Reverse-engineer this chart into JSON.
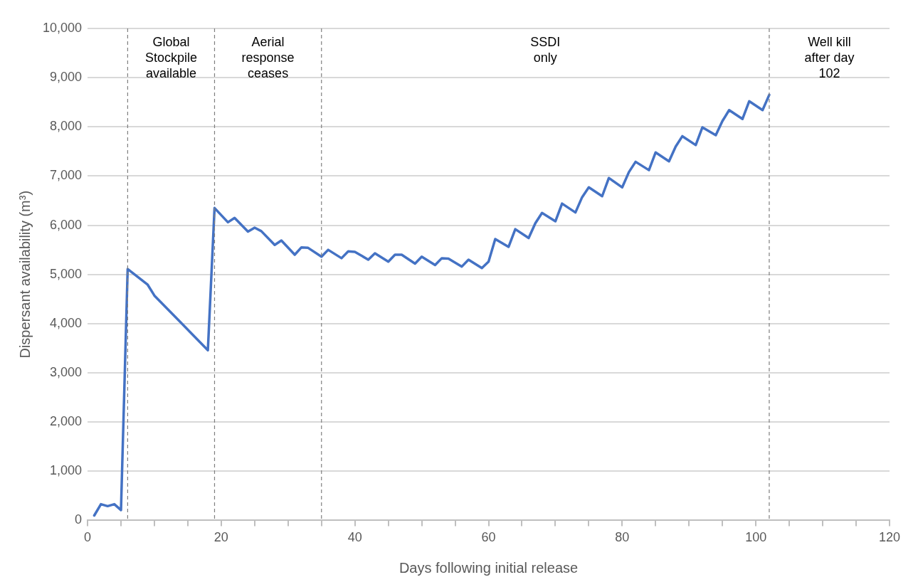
{
  "chart_data": {
    "type": "line",
    "xlabel": "Days following initial release",
    "ylabel": "Dispersant availability (m³)",
    "x": [
      1,
      2,
      3,
      4,
      5,
      6,
      9,
      10,
      18,
      19,
      21,
      22,
      24,
      25,
      26,
      28,
      29,
      31,
      32,
      33,
      35,
      36,
      38,
      39,
      40,
      42,
      43,
      45,
      46,
      47,
      49,
      50,
      52,
      53,
      54,
      56,
      57,
      59,
      60,
      61,
      63,
      64,
      66,
      67,
      68,
      70,
      71,
      73,
      74,
      75,
      77,
      78,
      80,
      81,
      82,
      84,
      85,
      87,
      88,
      89,
      91,
      92,
      94,
      95,
      96,
      98,
      99,
      101,
      102
    ],
    "series": [
      {
        "color": "#4472c4",
        "values": [
          100,
          330,
          290,
          330,
          210,
          5110,
          4790,
          4570,
          3460,
          6350,
          6060,
          6150,
          5870,
          5950,
          5880,
          5600,
          5690,
          5400,
          5550,
          5540,
          5360,
          5500,
          5330,
          5470,
          5460,
          5300,
          5430,
          5260,
          5400,
          5400,
          5220,
          5360,
          5190,
          5330,
          5320,
          5160,
          5300,
          5130,
          5260,
          5720,
          5560,
          5920,
          5740,
          6040,
          6250,
          6080,
          6440,
          6260,
          6570,
          6770,
          6590,
          6960,
          6770,
          7080,
          7290,
          7120,
          7480,
          7300,
          7600,
          7810,
          7630,
          7990,
          7830,
          8120,
          8340,
          8160,
          8520,
          8340,
          8650
        ]
      }
    ],
    "xlim": [
      0,
      120
    ],
    "xticks": [
      0,
      {
        "value": 5,
        "label": null
      },
      {
        "value": 10,
        "label": null
      },
      {
        "value": 15,
        "label": null
      },
      20,
      {
        "value": 25,
        "label": null
      },
      {
        "value": 30,
        "label": null
      },
      {
        "value": 35,
        "label": null
      },
      40,
      {
        "value": 45,
        "label": null
      },
      {
        "value": 50,
        "label": null
      },
      {
        "value": 55,
        "label": null
      },
      60,
      {
        "value": 65,
        "label": null
      },
      {
        "value": 70,
        "label": null
      },
      {
        "value": 75,
        "label": null
      },
      80,
      {
        "value": 85,
        "label": null
      },
      {
        "value": 90,
        "label": null
      },
      {
        "value": 95,
        "label": null
      },
      100,
      {
        "value": 105,
        "label": null
      },
      {
        "value": 110,
        "label": null
      },
      {
        "value": 115,
        "label": null
      },
      120
    ],
    "ylim": [
      0,
      10000
    ],
    "yticks": [
      0,
      {
        "value": 1000,
        "label": "1,000"
      },
      {
        "value": 2000,
        "label": "2,000"
      },
      {
        "value": 3000,
        "label": "3,000"
      },
      {
        "value": 4000,
        "label": "4,000"
      },
      {
        "value": 5000,
        "label": "5,000"
      },
      {
        "value": 6000,
        "label": "6,000"
      },
      {
        "value": 7000,
        "label": "7,000"
      },
      {
        "value": 8000,
        "label": "8,000"
      },
      {
        "value": 9000,
        "label": "9,000"
      },
      {
        "value": 10000,
        "label": "10,000"
      }
    ],
    "grid": "y",
    "legend": false,
    "marker": "none",
    "line_style": "solid",
    "ref_lines": [
      {
        "axis": "x",
        "value": 6,
        "color": "#7f7f7f",
        "line_style": "dashed"
      },
      {
        "axis": "x",
        "value": 19,
        "color": "#7f7f7f",
        "line_style": "dashed"
      },
      {
        "axis": "x",
        "value": 35,
        "color": "#7f7f7f",
        "line_style": "dashed"
      },
      {
        "axis": "x",
        "value": 102,
        "color": "#7f7f7f",
        "line_style": "dashed"
      }
    ],
    "annotations": [
      "Global\nStockpile\navailable",
      "Aerial\nresponse\nceases",
      "SSDI\nonly",
      "Well kill\nafter day\n102"
    ]
  }
}
